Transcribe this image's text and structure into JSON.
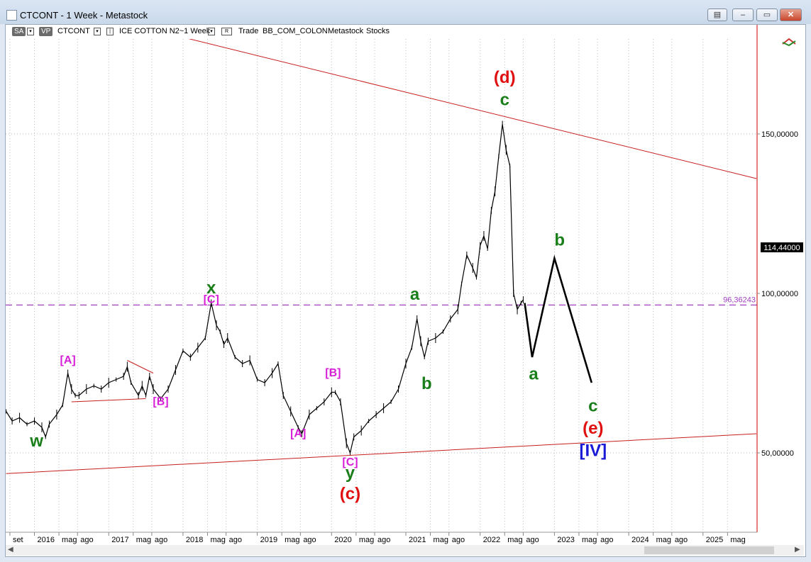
{
  "window": {
    "title": "CTCONT - 1 Week - Metastock",
    "buttons": [
      "restore-icon",
      "minimize-icon",
      "maximize-icon",
      "close-icon"
    ]
  },
  "toolbar": {
    "sa_label": "SA",
    "vp_label": "VP",
    "symbol": "CTCONT",
    "instrument": "ICE COTTON N2~1 Week",
    "r_label": "R",
    "trade_label": "Trade",
    "account": "BB_COM_COLON",
    "source": "Metastock",
    "type": "Stocks"
  },
  "price_badge": "114,44000",
  "colors": {
    "green": "#1a7f1a",
    "magenta": "#d61fd6",
    "red": "#e01010",
    "blue": "#1a1ad6",
    "trendline": "#c81e1e",
    "hline": "#a040c0"
  },
  "chart_data": {
    "type": "line",
    "ylim": [
      35,
      175
    ],
    "yticks": [
      "150,00000",
      "100,00000",
      "50,00000"
    ],
    "ytick_values": [
      150,
      100,
      50
    ],
    "xticks": [
      {
        "label": "set",
        "t": 2015.67
      },
      {
        "label": "2016",
        "t": 2016.0
      },
      {
        "label": "mag",
        "t": 2016.33
      },
      {
        "label": "ago",
        "t": 2016.58
      },
      {
        "label": "2017",
        "t": 2017.0
      },
      {
        "label": "mag",
        "t": 2017.33
      },
      {
        "label": "ago",
        "t": 2017.58
      },
      {
        "label": "2018",
        "t": 2018.0
      },
      {
        "label": "mag",
        "t": 2018.33
      },
      {
        "label": "ago",
        "t": 2018.58
      },
      {
        "label": "2019",
        "t": 2019.0
      },
      {
        "label": "mag",
        "t": 2019.33
      },
      {
        "label": "ago",
        "t": 2019.58
      },
      {
        "label": "2020",
        "t": 2020.0
      },
      {
        "label": "mag",
        "t": 2020.33
      },
      {
        "label": "ago",
        "t": 2020.58
      },
      {
        "label": "2021",
        "t": 2021.0
      },
      {
        "label": "mag",
        "t": 2021.33
      },
      {
        "label": "ago",
        "t": 2021.58
      },
      {
        "label": "2022",
        "t": 2022.0
      },
      {
        "label": "mag",
        "t": 2022.33
      },
      {
        "label": "ago",
        "t": 2022.58
      },
      {
        "label": "2023",
        "t": 2023.0
      },
      {
        "label": "mag",
        "t": 2023.33
      },
      {
        "label": "ago",
        "t": 2023.58
      },
      {
        "label": "2024",
        "t": 2024.0
      },
      {
        "label": "mag",
        "t": 2024.33
      },
      {
        "label": "ago",
        "t": 2024.58
      },
      {
        "label": "2025",
        "t": 2025.0
      },
      {
        "label": "mag",
        "t": 2025.33
      }
    ],
    "price": [
      [
        2015.62,
        63
      ],
      [
        2015.7,
        60
      ],
      [
        2015.8,
        61
      ],
      [
        2015.9,
        59
      ],
      [
        2016.0,
        60
      ],
      [
        2016.1,
        58
      ],
      [
        2016.15,
        55
      ],
      [
        2016.2,
        59
      ],
      [
        2016.3,
        62
      ],
      [
        2016.38,
        65
      ],
      [
        2016.45,
        75
      ],
      [
        2016.5,
        70
      ],
      [
        2016.55,
        68
      ],
      [
        2016.6,
        68
      ],
      [
        2016.7,
        70
      ],
      [
        2016.8,
        71
      ],
      [
        2016.9,
        70
      ],
      [
        2017.0,
        72
      ],
      [
        2017.1,
        73
      ],
      [
        2017.2,
        74
      ],
      [
        2017.25,
        77
      ],
      [
        2017.3,
        72
      ],
      [
        2017.4,
        68
      ],
      [
        2017.45,
        71
      ],
      [
        2017.5,
        68
      ],
      [
        2017.55,
        74
      ],
      [
        2017.6,
        70
      ],
      [
        2017.7,
        67
      ],
      [
        2017.8,
        70
      ],
      [
        2017.9,
        76
      ],
      [
        2018.0,
        82
      ],
      [
        2018.1,
        80
      ],
      [
        2018.2,
        83
      ],
      [
        2018.3,
        86
      ],
      [
        2018.38,
        97
      ],
      [
        2018.45,
        90
      ],
      [
        2018.5,
        88
      ],
      [
        2018.55,
        84
      ],
      [
        2018.6,
        86
      ],
      [
        2018.7,
        80
      ],
      [
        2018.8,
        78
      ],
      [
        2018.9,
        79
      ],
      [
        2019.0,
        73
      ],
      [
        2019.1,
        72
      ],
      [
        2019.2,
        75
      ],
      [
        2019.28,
        78
      ],
      [
        2019.35,
        68
      ],
      [
        2019.45,
        63
      ],
      [
        2019.55,
        58
      ],
      [
        2019.6,
        56
      ],
      [
        2019.7,
        62
      ],
      [
        2019.8,
        64
      ],
      [
        2019.9,
        66
      ],
      [
        2020.0,
        69
      ],
      [
        2020.05,
        69
      ],
      [
        2020.12,
        66
      ],
      [
        2020.2,
        53
      ],
      [
        2020.25,
        50
      ],
      [
        2020.3,
        55
      ],
      [
        2020.4,
        57
      ],
      [
        2020.5,
        60
      ],
      [
        2020.6,
        62
      ],
      [
        2020.7,
        64
      ],
      [
        2020.8,
        66
      ],
      [
        2020.9,
        70
      ],
      [
        2021.0,
        78
      ],
      [
        2021.08,
        83
      ],
      [
        2021.15,
        92
      ],
      [
        2021.2,
        85
      ],
      [
        2021.25,
        80
      ],
      [
        2021.3,
        85
      ],
      [
        2021.4,
        86
      ],
      [
        2021.5,
        88
      ],
      [
        2021.6,
        92
      ],
      [
        2021.7,
        95
      ],
      [
        2021.75,
        103
      ],
      [
        2021.82,
        112
      ],
      [
        2021.9,
        108
      ],
      [
        2021.95,
        105
      ],
      [
        2022.0,
        115
      ],
      [
        2022.05,
        118
      ],
      [
        2022.1,
        114
      ],
      [
        2022.15,
        126
      ],
      [
        2022.2,
        132
      ],
      [
        2022.25,
        143
      ],
      [
        2022.3,
        153
      ],
      [
        2022.35,
        145
      ],
      [
        2022.4,
        140
      ],
      [
        2022.45,
        100
      ],
      [
        2022.5,
        95
      ],
      [
        2022.55,
        97
      ],
      [
        2022.58,
        98
      ]
    ],
    "projection": [
      [
        2022.6,
        97
      ],
      [
        2022.7,
        80
      ],
      [
        2023.0,
        111
      ],
      [
        2023.5,
        72
      ]
    ],
    "hline": {
      "value": 96.36243,
      "label": "96,36243"
    },
    "trendlines": [
      {
        "from": [
          2015.62,
          43.5
        ],
        "to": [
          2025.72,
          56
        ]
      },
      {
        "from": [
          2017.88,
          181
        ],
        "to": [
          2025.72,
          136
        ]
      },
      {
        "from": [
          2017.25,
          79
        ],
        "to": [
          2017.6,
          75
        ]
      },
      {
        "from": [
          2016.5,
          66
        ],
        "to": [
          2017.5,
          67
        ]
      }
    ],
    "annotations": [
      {
        "text": "w",
        "t": 2016.03,
        "v": 52,
        "color": "green"
      },
      {
        "text": "[A]",
        "t": 2016.45,
        "v": 78,
        "color": "magenta"
      },
      {
        "text": "[B]",
        "t": 2017.7,
        "v": 65,
        "color": "magenta"
      },
      {
        "text": "x",
        "t": 2018.38,
        "v": 100,
        "color": "green"
      },
      {
        "text": "[C]",
        "t": 2018.38,
        "v": 97,
        "color": "magenta"
      },
      {
        "text": "[B]",
        "t": 2020.02,
        "v": 74,
        "color": "magenta"
      },
      {
        "text": "[A]",
        "t": 2019.55,
        "v": 55,
        "color": "magenta"
      },
      {
        "text": "[C]",
        "t": 2020.25,
        "v": 46,
        "color": "magenta"
      },
      {
        "text": "y",
        "t": 2020.25,
        "v": 42,
        "color": "green"
      },
      {
        "text": "(c)",
        "t": 2020.25,
        "v": 35.5,
        "color": "red"
      },
      {
        "text": "a",
        "t": 2021.12,
        "v": 98,
        "color": "green"
      },
      {
        "text": "b",
        "t": 2021.28,
        "v": 70,
        "color": "green"
      },
      {
        "text": "(d)",
        "t": 2022.33,
        "v": 166,
        "color": "red"
      },
      {
        "text": "c",
        "t": 2022.33,
        "v": 159,
        "color": "green"
      },
      {
        "text": "b",
        "t": 2023.07,
        "v": 115,
        "color": "green"
      },
      {
        "text": "a",
        "t": 2022.72,
        "v": 73,
        "color": "green"
      },
      {
        "text": "c",
        "t": 2023.52,
        "v": 63,
        "color": "green"
      },
      {
        "text": "(e)",
        "t": 2023.52,
        "v": 56,
        "color": "red"
      },
      {
        "text": "[IV]",
        "t": 2023.52,
        "v": 49,
        "color": "blue"
      }
    ]
  }
}
